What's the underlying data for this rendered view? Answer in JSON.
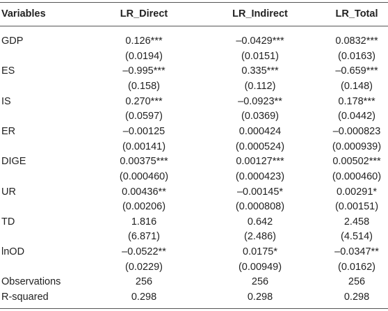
{
  "table": {
    "header": [
      "Variables",
      "LR_Direct",
      "LR_Indirect",
      "LR_Total"
    ],
    "rows": [
      {
        "label": "GDP",
        "values": [
          "0.126***",
          "–0.0429***",
          "0.0832***"
        ],
        "se": [
          "(0.0194)",
          "(0.0151)",
          "(0.0163)"
        ]
      },
      {
        "label": "ES",
        "values": [
          "–0.995***",
          "0.335***",
          "–0.659***"
        ],
        "se": [
          "(0.158)",
          "(0.112)",
          "(0.148)"
        ]
      },
      {
        "label": "IS",
        "values": [
          "0.270***",
          "–0.0923**",
          "0.178***"
        ],
        "se": [
          "(0.0597)",
          "(0.0369)",
          "(0.0442)"
        ]
      },
      {
        "label": "ER",
        "values": [
          "–0.00125",
          "0.000424",
          "–0.000823"
        ],
        "se": [
          "(0.00141)",
          "(0.000524)",
          "(0.000939)"
        ]
      },
      {
        "label": "DIGE",
        "values": [
          "0.00375***",
          "0.00127***",
          "0.00502***"
        ],
        "se": [
          "(0.000460)",
          "(0.000423)",
          "(0.000460)"
        ]
      },
      {
        "label": "UR",
        "values": [
          "0.00436**",
          "–0.00145*",
          "0.00291*"
        ],
        "se": [
          "(0.00206)",
          "(0.000808)",
          "(0.00151)"
        ]
      },
      {
        "label": "TD",
        "values": [
          "1.816",
          "0.642",
          "2.458"
        ],
        "se": [
          "(6.871)",
          "(2.486)",
          "(4.514)"
        ]
      },
      {
        "label": "lnOD",
        "values": [
          "–0.0522**",
          "0.0175*",
          "–0.0347**"
        ],
        "se": [
          "(0.0229)",
          "(0.00949)",
          "(0.0162)"
        ]
      },
      {
        "label": "Observations",
        "values": [
          "256",
          "256",
          "256"
        ]
      },
      {
        "label": "R-squared",
        "values": [
          "0.298",
          "0.298",
          "0.298"
        ]
      }
    ]
  }
}
